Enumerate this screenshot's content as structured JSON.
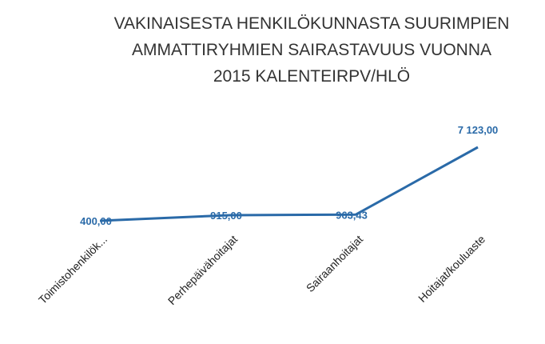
{
  "chart_data": {
    "type": "line",
    "title": [
      "VAKINAISESTA HENKILÖKUNNASTA SUURIMPIEN",
      "AMMATTIRYHMIEN SAIRASTAVUUS VUONNA",
      "2015 KALENTEIRPV/HLÖ"
    ],
    "categories": [
      "Toimistohenkilök...",
      "Perhepäivähoitajat",
      "Sairaanhoitajat",
      "Hoitajat/kouluaste"
    ],
    "series": [
      {
        "color": "#2a6aa8",
        "values": [
          400,
          915,
          963.43,
          7123
        ],
        "value_labels": [
          "400,00",
          "915,00",
          "963,43",
          "7 123,00"
        ]
      }
    ]
  }
}
